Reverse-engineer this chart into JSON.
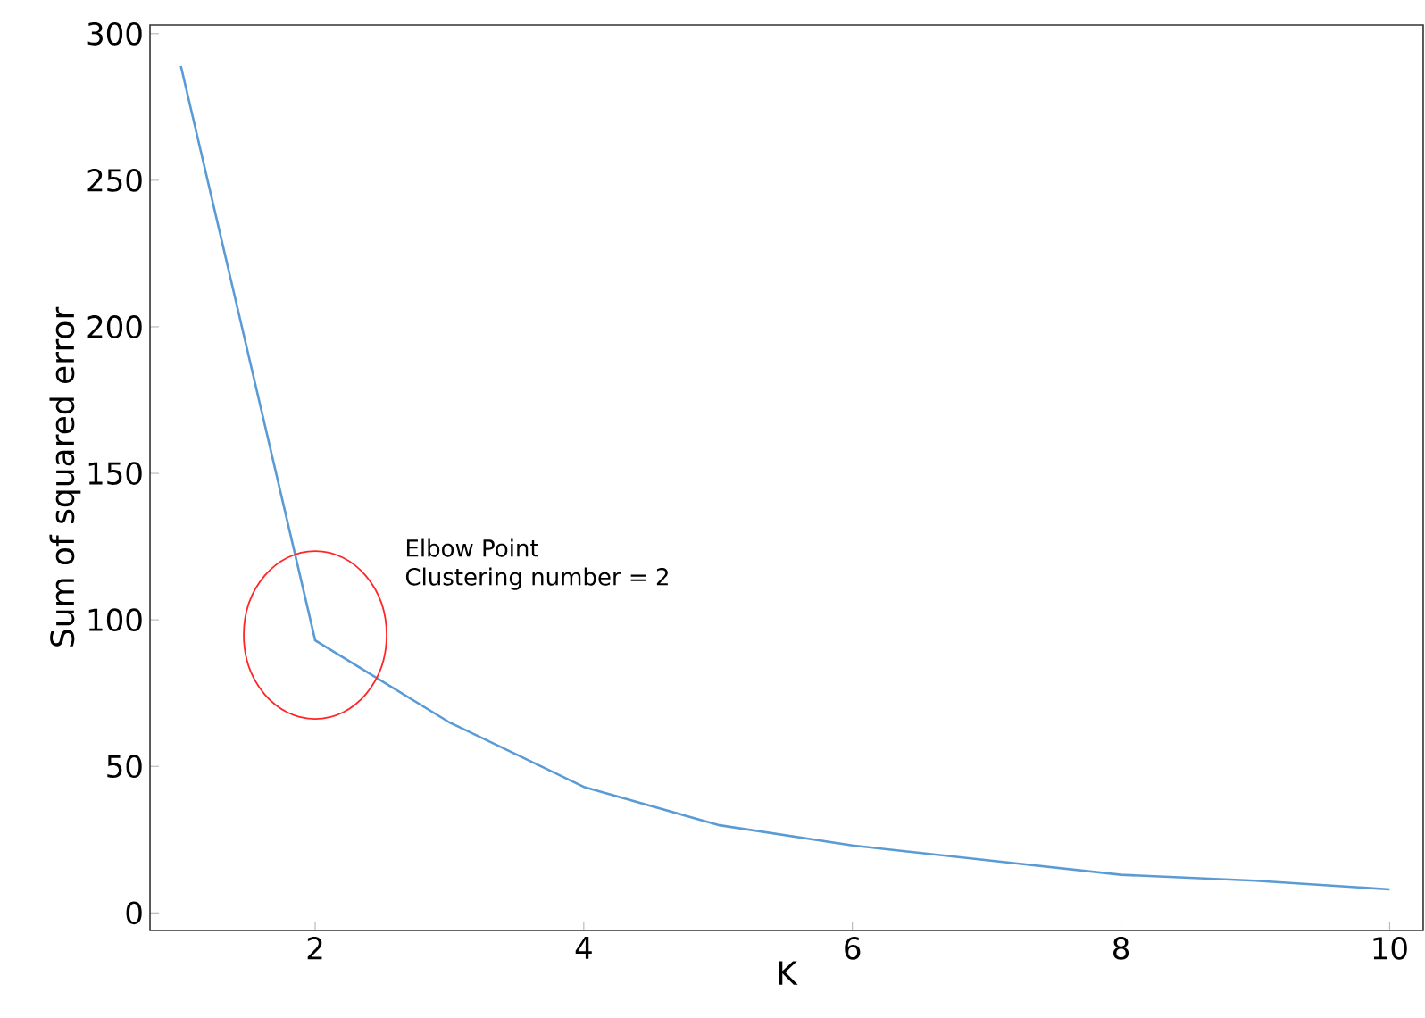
{
  "chart_data": {
    "type": "line",
    "xlabel": "K",
    "ylabel": "Sum of squared error",
    "x": [
      1,
      2,
      3,
      4,
      5,
      6,
      7,
      8,
      9,
      10
    ],
    "series": [
      {
        "color": "#5b9bd5",
        "values": [
          289,
          93,
          65,
          43,
          30,
          23,
          18,
          13,
          11,
          8
        ]
      }
    ],
    "xlim": [
      0.77,
      10.25
    ],
    "ylim": [
      -6,
      303
    ],
    "xticks": [
      2,
      4,
      6,
      8,
      10
    ],
    "yticks": [
      0,
      50,
      100,
      150,
      200,
      250,
      300
    ],
    "grid": false,
    "marker": "none",
    "line_style": "solid",
    "annotations": [
      "Elbow Point",
      "Clustering number = 2"
    ]
  }
}
